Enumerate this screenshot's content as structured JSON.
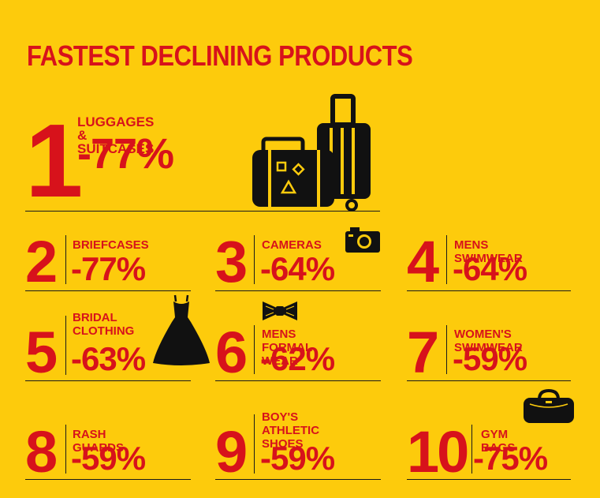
{
  "title": "FASTEST DECLINING PRODUCTS",
  "chart_data": {
    "type": "table",
    "title": "FASTEST DECLINING PRODUCTS",
    "items": [
      {
        "rank": "1",
        "name": "LUGGAGES & SUITCASES",
        "value": -77,
        "label": "-77%"
      },
      {
        "rank": "2",
        "name": "BRIEFCASES",
        "value": -77,
        "label": "-77%"
      },
      {
        "rank": "3",
        "name": "CAMERAS",
        "value": -64,
        "label": "-64%"
      },
      {
        "rank": "4",
        "name": "MENS SWIMWEAR",
        "value": -64,
        "label": "-64%"
      },
      {
        "rank": "5",
        "name": "BRIDAL\nCLOTHING",
        "value": -63,
        "label": "-63%"
      },
      {
        "rank": "6",
        "name": "MENS FORMAL WEAR",
        "value": -62,
        "label": "-62%"
      },
      {
        "rank": "7",
        "name": "WOMEN'S SWIMWEAR",
        "value": -59,
        "label": "-59%"
      },
      {
        "rank": "8",
        "name": "RASH GUARDS",
        "value": -59,
        "label": "-59%"
      },
      {
        "rank": "9",
        "name": "BOY'S\nATHLETIC SHOES",
        "value": -59,
        "label": "-59%"
      },
      {
        "rank": "10",
        "name": "GYM BAGS",
        "value": -75,
        "label": "-75%"
      }
    ]
  },
  "colors": {
    "background": "#FDCB0C",
    "accent": "#D7121B",
    "ink": "#1a1a1a"
  },
  "icons": [
    "suitcase-icon",
    "trolley-bag-icon",
    "camera-icon",
    "dress-icon",
    "bow-tie-icon",
    "gym-bag-icon"
  ]
}
